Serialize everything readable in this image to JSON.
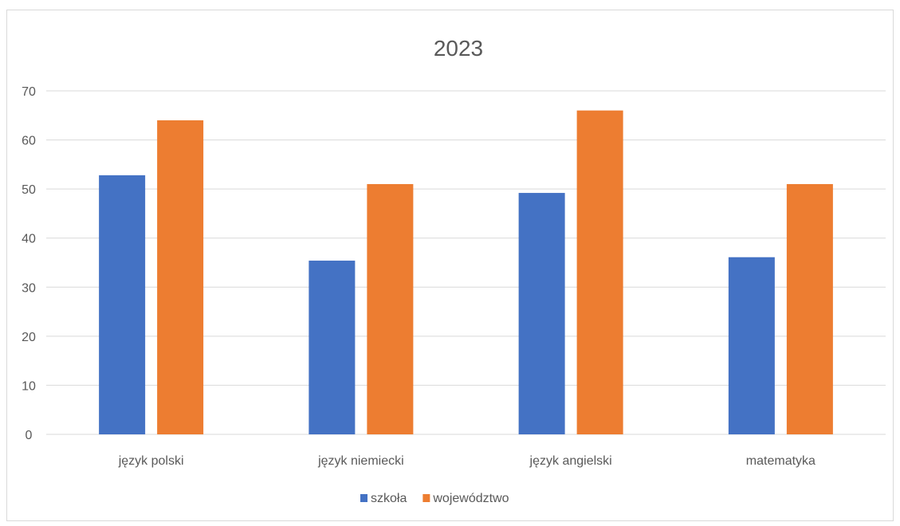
{
  "chart_data": {
    "type": "bar",
    "title": "2023",
    "xlabel": "",
    "ylabel": "",
    "categories": [
      "język polski",
      "język niemiecki",
      "język angielski",
      "matematyka"
    ],
    "series": [
      {
        "name": "szkoła",
        "color": "#4472C4",
        "values": [
          52.8,
          35.4,
          49.2,
          36.1
        ]
      },
      {
        "name": "województwo",
        "color": "#ED7D31",
        "values": [
          64,
          51,
          66,
          51
        ]
      }
    ],
    "ylim": [
      0,
      70
    ],
    "yticks": [
      "0",
      "10",
      "20",
      "30",
      "40",
      "50",
      "60",
      "70"
    ],
    "grid": true,
    "legend_position": "bottom"
  }
}
